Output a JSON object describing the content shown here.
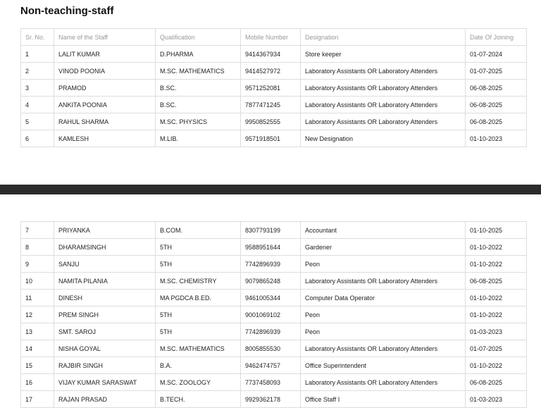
{
  "title": "Non-teaching-staff",
  "table": {
    "headers": [
      "Sr. No.",
      "Name of the Staff",
      "Qualification",
      "Mobile Number",
      "Designation",
      "Date Of Joining"
    ],
    "rows": [
      [
        "1",
        "LALIT KUMAR",
        "D.PHARMA",
        "9414367934",
        "Store keeper",
        "01-07-2024"
      ],
      [
        "2",
        "VINOD POONIA",
        "M.SC. MATHEMATICS",
        "9414527972",
        "Laboratory Assistants OR Laboratory Attenders",
        "01-07-2025"
      ],
      [
        "3",
        "PRAMOD",
        "B.SC.",
        "9571252081",
        "Laboratory Assistants OR Laboratory Attenders",
        "06-08-2025"
      ],
      [
        "4",
        "ANKITA POONIA",
        "B.SC.",
        "7877471245",
        "Laboratory Assistants OR Laboratory Attenders",
        "06-08-2025"
      ],
      [
        "5",
        "RAHUL SHARMA",
        "M.SC. PHYSICS",
        "9950852555",
        "Laboratory Assistants OR Laboratory Attenders",
        "06-08-2025"
      ],
      [
        "6",
        "KAMLESH",
        "M.LIB.",
        "9571918501",
        "New Designation",
        "01-10-2023"
      ],
      [
        "7",
        "PRIYANKA",
        "B.COM.",
        "8307793199",
        "Accountant",
        "01-10-2025"
      ],
      [
        "8",
        "DHARAMSINGH",
        "5TH",
        "9588951644",
        "Gardener",
        "01-10-2022"
      ],
      [
        "9",
        "SANJU",
        "5TH",
        "7742896939",
        "Peon",
        "01-10-2022"
      ],
      [
        "10",
        "NAMITA PILANIA",
        "M.SC. CHEMISTRY",
        "9079865248",
        "Laboratory Assistants OR Laboratory Attenders",
        "06-08-2025"
      ],
      [
        "11",
        "DINESH",
        "MA PGDCA B.ED.",
        "9461005344",
        "Computer Data Operator",
        "01-10-2022"
      ],
      [
        "12",
        "PREM SINGH",
        "5TH",
        "9001069102",
        "Peon",
        "01-10-2022"
      ],
      [
        "13",
        "SMT. SAROJ",
        "5TH",
        "7742896939",
        "Peon",
        "01-03-2023"
      ],
      [
        "14",
        "NISHA GOYAL",
        "M.SC. MATHEMATICS",
        "8005855530",
        "Laboratory Assistants OR Laboratory Attenders",
        "01-07-2025"
      ],
      [
        "15",
        "RAJBIR SINGH",
        "B.A.",
        "9462474757",
        "Office Superintendent",
        "01-10-2022"
      ],
      [
        "16",
        "VIJAY KUMAR SARASWAT",
        "M.SC. ZOOLOGY",
        "7737458093",
        "Laboratory Assistants OR Laboratory Attenders",
        "06-08-2025"
      ],
      [
        "17",
        "RAJAN PRASAD",
        "B.TECH.",
        "9929362178",
        "Office Staff I",
        "01-03-2023"
      ]
    ]
  }
}
